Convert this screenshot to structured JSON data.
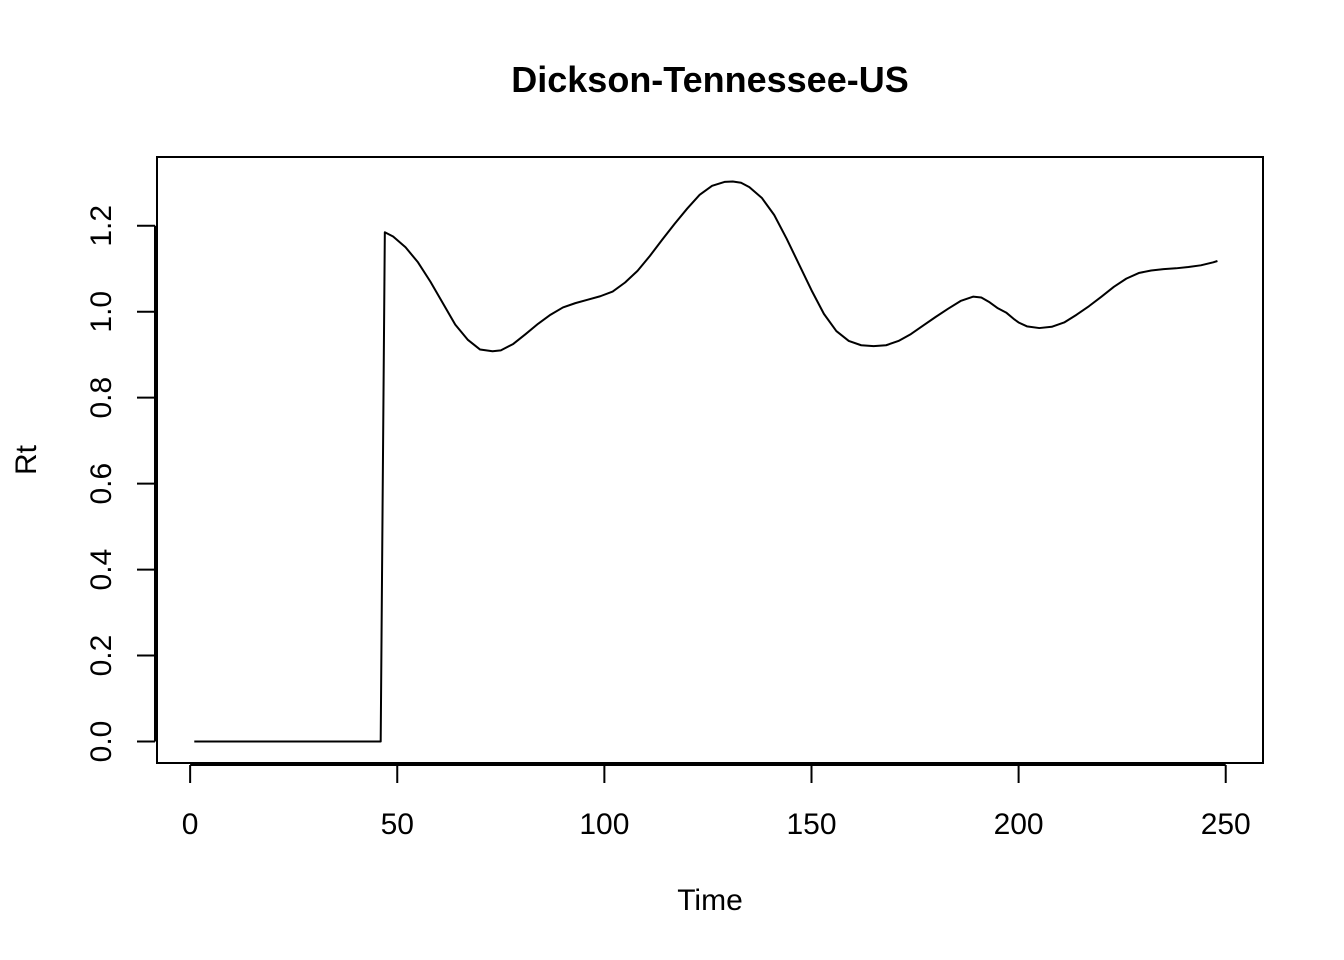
{
  "chart_data": {
    "type": "line",
    "title": "Dickson-Tennessee-US",
    "xlabel": "Time",
    "ylabel": "Rt",
    "xlim": [
      -8,
      259
    ],
    "ylim": [
      -0.05,
      1.36
    ],
    "xticks": [
      0,
      50,
      100,
      150,
      200,
      250
    ],
    "yticks": [
      0.0,
      0.2,
      0.4,
      0.6,
      0.8,
      1.0,
      1.2
    ],
    "ytick_labels": [
      "0.0",
      "0.2",
      "0.4",
      "0.6",
      "0.8",
      "1.0",
      "1.2"
    ],
    "grid": false,
    "series": [
      {
        "x": [
          1,
          10,
          20,
          30,
          40,
          46,
          46.5,
          47,
          49,
          52,
          55,
          58,
          61,
          64,
          67,
          70,
          73,
          75,
          78,
          81,
          84,
          87,
          90,
          93,
          96,
          99,
          102,
          105,
          108,
          111,
          114,
          117,
          120,
          123,
          126,
          129,
          131,
          133,
          135,
          138,
          141,
          144,
          147,
          150,
          153,
          156,
          159,
          162,
          165,
          168,
          171,
          174,
          177,
          180,
          183,
          186,
          189,
          191,
          193,
          195,
          197,
          199,
          200,
          202,
          205,
          208,
          211,
          214,
          217,
          220,
          223,
          226,
          229,
          232,
          235,
          238,
          241,
          244,
          247,
          248
        ],
        "y": [
          0.0,
          0.0,
          0.0,
          0.0,
          0.0,
          0.0,
          0.6,
          1.185,
          1.175,
          1.15,
          1.115,
          1.07,
          1.02,
          0.97,
          0.935,
          0.912,
          0.908,
          0.91,
          0.925,
          0.948,
          0.972,
          0.993,
          1.01,
          1.02,
          1.028,
          1.036,
          1.047,
          1.068,
          1.095,
          1.13,
          1.168,
          1.205,
          1.24,
          1.272,
          1.293,
          1.302,
          1.303,
          1.3,
          1.29,
          1.265,
          1.225,
          1.17,
          1.11,
          1.05,
          0.995,
          0.955,
          0.932,
          0.922,
          0.92,
          0.922,
          0.932,
          0.948,
          0.968,
          0.988,
          1.007,
          1.025,
          1.035,
          1.033,
          1.022,
          1.008,
          0.998,
          0.982,
          0.975,
          0.966,
          0.962,
          0.965,
          0.975,
          0.993,
          1.013,
          1.035,
          1.058,
          1.077,
          1.09,
          1.096,
          1.099,
          1.101,
          1.104,
          1.108,
          1.115,
          1.118
        ]
      }
    ]
  }
}
